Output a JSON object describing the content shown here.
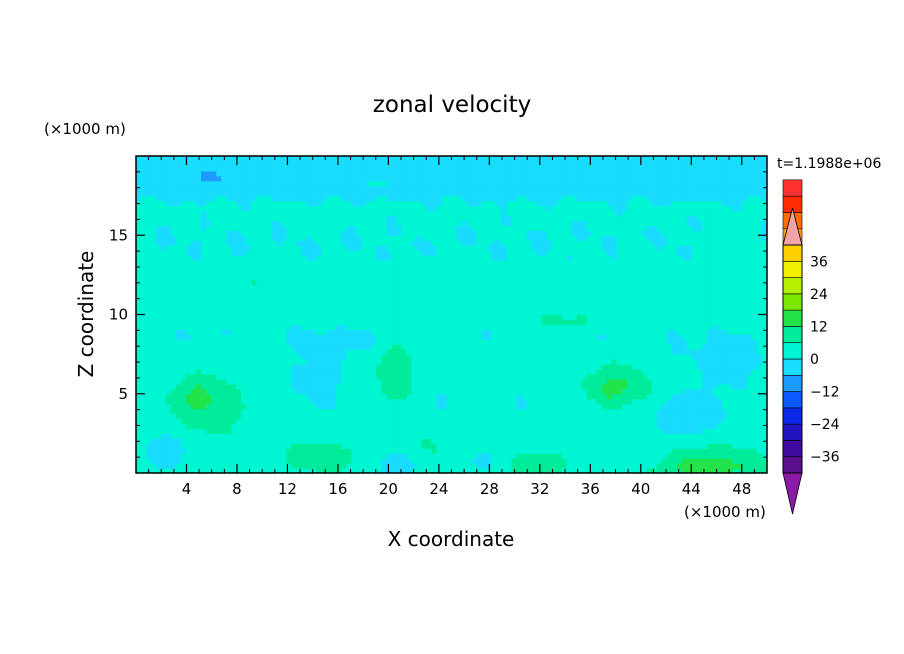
{
  "chart_data": {
    "type": "heatmap",
    "title": "zonal velocity",
    "xlabel": "X coordinate",
    "ylabel": "Z coordinate",
    "x_unit": "(×1000 m)",
    "y_unit": "(×1000 m)",
    "time_label": "t=1.1988e+06",
    "xlim": [
      0,
      50
    ],
    "ylim": [
      0,
      20
    ],
    "x_ticks": [
      4,
      8,
      12,
      16,
      20,
      24,
      28,
      32,
      36,
      40,
      44,
      48
    ],
    "y_ticks": [
      5,
      10,
      15
    ],
    "colorbar": {
      "min": -42,
      "max": 42,
      "step": 6,
      "tick_values": [
        36,
        24,
        12,
        0,
        -12,
        -24,
        -36
      ],
      "tick_labels": [
        "36",
        "24",
        "12",
        "0",
        "−12",
        "−24",
        "−36"
      ],
      "colors": [
        "#5a0f8c",
        "#3f0aa0",
        "#2414c0",
        "#0a28e6",
        "#0a5aff",
        "#1e9bff",
        "#19dcff",
        "#00f5d2",
        "#00ec9a",
        "#22e34a",
        "#7be600",
        "#b4f000",
        "#f0f000",
        "#ffcf00",
        "#ffa000",
        "#ff6c00",
        "#ff2c00",
        "#ff3232"
      ],
      "under_color": "#8c1aa6",
      "over_color": "#f2a3a3"
    },
    "background_value": 3,
    "features": [
      {
        "x": 5.5,
        "z": 4.3,
        "sx": 2.8,
        "sz": 1.7,
        "amp": 9
      },
      {
        "x": 4.8,
        "z": 5.2,
        "sx": 1.3,
        "sz": 0.8,
        "amp": 4
      },
      {
        "x": 20.6,
        "z": 6.8,
        "sx": 1.4,
        "sz": 2.2,
        "amp": 9
      },
      {
        "x": 38.2,
        "z": 5.6,
        "sx": 2.5,
        "sz": 1.4,
        "amp": 9
      },
      {
        "x": 37.5,
        "z": 5.3,
        "sx": 1.1,
        "sz": 0.6,
        "amp": 4
      },
      {
        "x": 45.5,
        "z": 0.4,
        "sx": 4.5,
        "sz": 1.2,
        "amp": 12
      },
      {
        "x": 14.5,
        "z": 1.0,
        "sx": 3.0,
        "sz": 0.9,
        "amp": 8
      },
      {
        "x": 31.5,
        "z": 0.6,
        "sx": 2.5,
        "sz": 0.8,
        "amp": 7
      },
      {
        "x": 34.5,
        "z": 9.6,
        "sx": 4.5,
        "sz": 0.5,
        "amp": 5
      },
      {
        "x": 23.5,
        "z": 1.8,
        "sx": 1.4,
        "sz": 0.9,
        "amp": 4
      },
      {
        "x": 27.8,
        "z": 5.2,
        "sx": 0.9,
        "sz": 0.8,
        "amp": 3
      },
      {
        "x": 9.0,
        "z": 2.5,
        "sx": 1.0,
        "sz": 0.8,
        "amp": 3
      },
      {
        "x": 44.0,
        "z": 3.8,
        "sx": 2.8,
        "sz": 1.3,
        "amp": -8
      },
      {
        "x": 2.5,
        "z": 1.5,
        "sx": 2.2,
        "sz": 1.3,
        "amp": -6
      },
      {
        "x": 14.5,
        "z": 5.8,
        "sx": 2.6,
        "sz": 2.3,
        "amp": -5
      },
      {
        "x": 20.5,
        "z": 0.5,
        "sx": 2.0,
        "sz": 0.8,
        "amp": -6
      },
      {
        "x": 28.0,
        "z": 0.8,
        "sx": 1.5,
        "sz": 1.0,
        "amp": -5
      },
      {
        "x": 31.0,
        "z": 4.8,
        "sx": 1.8,
        "sz": 1.8,
        "amp": -3
      },
      {
        "x": 40.5,
        "z": 1.6,
        "sx": 1.5,
        "sz": 1.0,
        "amp": -4
      },
      {
        "x": 24.0,
        "z": 4.3,
        "sx": 1.3,
        "sz": 1.3,
        "amp": -3
      },
      {
        "x": 47.0,
        "z": 6.5,
        "sx": 3.5,
        "sz": 1.5,
        "amp": -4
      },
      {
        "x": 18.0,
        "z": 8.0,
        "sx": 6.0,
        "sz": 0.8,
        "amp": -2
      },
      {
        "x": 42.0,
        "z": 7.5,
        "sx": 8.0,
        "sz": 0.8,
        "amp": -1.5
      }
    ],
    "bands": [
      {
        "z": 11.6,
        "w": 1.8,
        "amp": 1.5
      },
      {
        "z": 19.0,
        "w": 1.6,
        "amp": -7
      },
      {
        "z": 14.2,
        "w": 3.0,
        "amp": -3
      },
      {
        "z": 8.8,
        "w": 1.0,
        "amp": -2.5
      }
    ],
    "small_features": [
      {
        "x": 13.8,
        "z": 16.2,
        "sx": 1.4,
        "sz": 0.45,
        "amp": 4
      },
      {
        "x": 23.8,
        "z": 15.0,
        "sx": 0.9,
        "sz": 0.3,
        "amp": 4
      },
      {
        "x": 39.5,
        "z": 14.2,
        "sx": 1.0,
        "sz": 0.45,
        "amp": 4
      },
      {
        "x": 36.0,
        "z": 13.3,
        "sx": 0.8,
        "sz": 0.35,
        "amp": 4
      },
      {
        "x": 47.0,
        "z": 14.5,
        "sx": 1.3,
        "sz": 0.45,
        "amp": 3
      },
      {
        "x": 9.3,
        "z": 12.0,
        "sx": 0.5,
        "sz": 0.25,
        "amp": 4
      },
      {
        "x": 19.0,
        "z": 18.3,
        "sx": 3.0,
        "sz": 0.3,
        "amp": 3
      },
      {
        "x": 6.0,
        "z": 18.7,
        "sx": 1.5,
        "sz": 0.25,
        "amp": -3
      }
    ]
  }
}
